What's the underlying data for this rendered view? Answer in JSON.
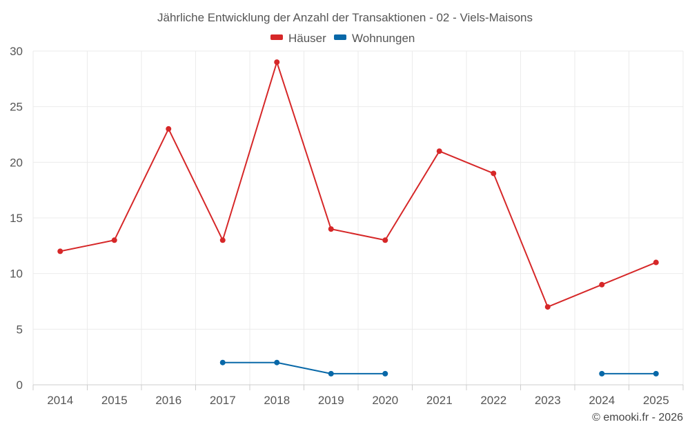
{
  "chart_data": {
    "type": "line",
    "title": "Jährliche Entwicklung der Anzahl der Transaktionen - 02 - Viels-Maisons",
    "categories": [
      "2014",
      "2015",
      "2016",
      "2017",
      "2018",
      "2019",
      "2020",
      "2021",
      "2022",
      "2023",
      "2024",
      "2025"
    ],
    "series": [
      {
        "name": "Häuser",
        "color": "#d62728",
        "values": [
          12,
          13,
          23,
          13,
          29,
          14,
          13,
          21,
          19,
          7,
          9,
          11
        ]
      },
      {
        "name": "Wohnungen",
        "color": "#0868a8",
        "values": [
          null,
          null,
          null,
          2,
          2,
          1,
          1,
          null,
          null,
          null,
          1,
          1
        ]
      }
    ],
    "ylim": [
      0,
      30
    ],
    "yticks": [
      "0",
      "5",
      "10",
      "15",
      "20",
      "25",
      "30"
    ],
    "xlabel": "",
    "ylabel": "",
    "grid": true,
    "legend": "top-center"
  },
  "credit": "© emooki.fr - 2026"
}
